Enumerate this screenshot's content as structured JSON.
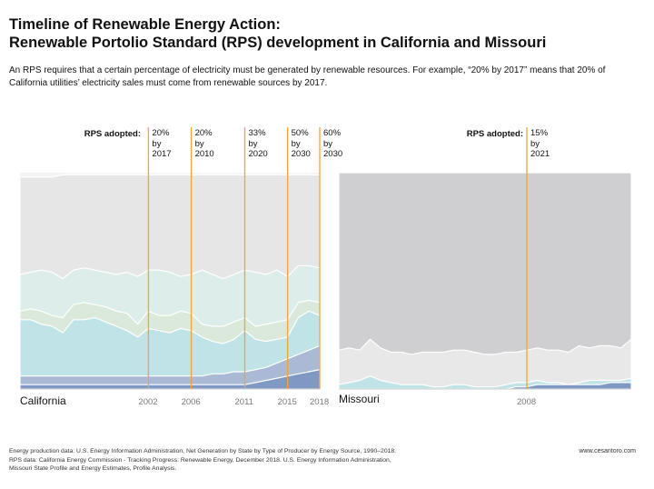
{
  "header": {
    "title_line1": "Timeline of Renewable Energy Action:",
    "title_line2": "Renewable Portolio Standard (RPS) development in California and Missouri",
    "description": "An RPS requires that a certain percentage of electricity must be generated by renewable resources. For example, “20% by 2017” means that 20% of California utilities’ electricity sales must come from renewable sources by 2017."
  },
  "colors": {
    "rps_line": "#f2a43a",
    "gray_total": "#e6e6e6",
    "missouri_total": "#cfcfd1",
    "hydro": "#bfe3e6",
    "wind": "#dbe9da",
    "solar": "#a9b9d6",
    "geothermal": "#7f98c4"
  },
  "footer": {
    "line1": "Energy production data: U.S. Energy Information Administration, Net Generation by State by Type of Producer by Energy Source, 1990–2018.",
    "line2": "RPS data: California Energy Commission - Tracking Progress: Renewable Energy, December 2018. U.S. Energy Information Administration,",
    "line3": "Missouri State Profile and Energy Estimates, Profile Analysis.",
    "site": "www.cesantoro.com"
  },
  "chart_data": [
    {
      "type": "area",
      "state": "California",
      "x_start": 1990,
      "x_end": 2018,
      "xticks": [
        "2002",
        "2006",
        "2011",
        "2015",
        "2018"
      ],
      "rps_label": "RPS adopted:",
      "rps": [
        {
          "year": 2002,
          "text": "20%\nby\n2017"
        },
        {
          "year": 2006,
          "text": "20%\nby\n2010"
        },
        {
          "year": 2011,
          "text": "33%\nby\n2020"
        },
        {
          "year": 2015,
          "text": "50%\nby\n2030"
        },
        {
          "year": 2018,
          "text": "60%\nby\n2030"
        }
      ],
      "ylim": [
        0,
        100
      ],
      "series": [
        {
          "key": "total",
          "values": [
            98,
            98,
            98,
            98,
            99,
            99,
            99,
            99,
            99,
            99,
            99,
            99,
            99,
            99,
            99,
            99,
            99,
            99,
            99,
            99,
            99,
            99,
            99,
            99,
            99,
            99,
            99,
            99,
            99
          ]
        },
        {
          "key": "renewables_upper",
          "values": [
            53,
            54,
            55,
            54,
            51,
            55,
            56,
            55,
            54,
            53,
            54,
            52,
            55,
            55,
            54,
            52,
            53,
            55,
            53,
            51,
            53,
            55,
            54,
            53,
            55,
            52,
            57,
            57,
            56
          ]
        },
        {
          "key": "wind",
          "values": [
            36,
            37,
            36,
            34,
            33,
            39,
            40,
            39,
            38,
            36,
            35,
            30,
            36,
            34,
            34,
            36,
            35,
            30,
            29,
            29,
            31,
            33,
            29,
            30,
            31,
            32,
            40,
            41,
            40
          ]
        },
        {
          "key": "hydro",
          "values": [
            32,
            32,
            30,
            29,
            26,
            32,
            32,
            33,
            31,
            29,
            27,
            24,
            28,
            27,
            26,
            28,
            27,
            24,
            22,
            21,
            23,
            27,
            23,
            22,
            23,
            24,
            33,
            36,
            34
          ]
        },
        {
          "key": "solar",
          "values": [
            6,
            6,
            6,
            6,
            6,
            6,
            6,
            6,
            6,
            6,
            6,
            6,
            6,
            6,
            6,
            6,
            6,
            6,
            7,
            7,
            8,
            8,
            9,
            10,
            12,
            14,
            16,
            18,
            20
          ]
        },
        {
          "key": "geothermal",
          "values": [
            2,
            2,
            2,
            2,
            2,
            2,
            2,
            2,
            2,
            2,
            2,
            2,
            2,
            2,
            2,
            2,
            2,
            2,
            2,
            2,
            2,
            2,
            3,
            4,
            5,
            6,
            7,
            8,
            9
          ]
        }
      ]
    },
    {
      "type": "area",
      "state": "Missouri",
      "x_start": 1990,
      "x_end": 2018,
      "xticks": [
        "2008"
      ],
      "rps_label": "RPS adopted:",
      "rps": [
        {
          "year": 2008,
          "text": "15%\nby\n2021"
        }
      ],
      "ylim": [
        0,
        100
      ],
      "series": [
        {
          "key": "total",
          "values": [
            100,
            100,
            100,
            100,
            100,
            100,
            100,
            100,
            100,
            100,
            100,
            100,
            100,
            100,
            100,
            100,
            100,
            100,
            100,
            100,
            100,
            100,
            100,
            100,
            100,
            100,
            100,
            100,
            100
          ]
        },
        {
          "key": "other_upper",
          "values": [
            18,
            19,
            18,
            23,
            19,
            17,
            17,
            16,
            17,
            17,
            17,
            18,
            18,
            17,
            16,
            16,
            17,
            17,
            18,
            19,
            18,
            18,
            17,
            20,
            19,
            20,
            20,
            19,
            23
          ]
        },
        {
          "key": "hydro",
          "values": [
            2,
            3,
            4,
            6,
            4,
            3,
            2,
            2,
            2,
            1,
            1,
            2,
            2,
            1,
            1,
            1,
            2,
            3,
            3,
            4,
            3,
            3,
            2,
            3,
            4,
            4,
            4,
            4,
            5
          ]
        },
        {
          "key": "wind",
          "values": [
            0,
            0,
            0,
            0,
            0,
            0,
            0,
            0,
            0,
            0,
            0,
            0,
            0,
            0,
            0,
            0,
            0,
            1,
            1,
            2,
            2,
            2,
            2,
            2,
            2,
            2,
            3,
            3,
            3
          ]
        }
      ]
    }
  ]
}
